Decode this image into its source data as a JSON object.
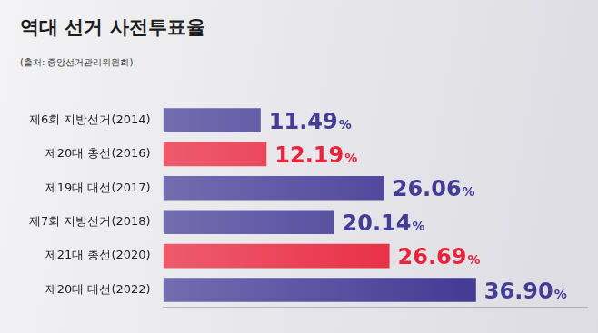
{
  "chart_data": {
    "type": "bar",
    "orientation": "horizontal",
    "title": "역대 선거 사전투표율",
    "subtitle": "(출처: 중앙선거관리위원회)",
    "categories": [
      "제6회 지방선거(2014)",
      "제20대 총선(2016)",
      "제19대 대선(2017)",
      "제7회 지방선거(2018)",
      "제21대 총선(2020)",
      "제20대 대선(2022)"
    ],
    "values": [
      11.49,
      12.19,
      26.06,
      20.14,
      26.69,
      36.9
    ],
    "value_labels": [
      "11.49%",
      "12.19%",
      "26.06%",
      "20.14%",
      "26.69%",
      "36.90%"
    ],
    "colors": [
      "#463c96",
      "#e8243c",
      "#463c96",
      "#463c96",
      "#e8243c",
      "#463c96"
    ],
    "xlim": [
      0,
      50
    ],
    "data_labels": true,
    "tick_labels": "y",
    "grid": false
  }
}
